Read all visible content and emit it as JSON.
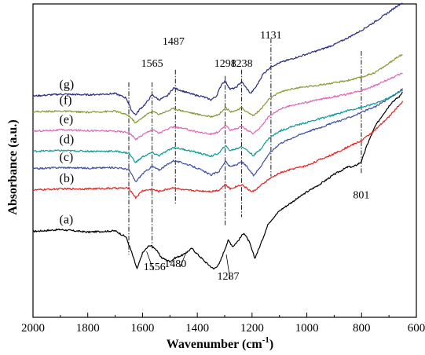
{
  "chart_data": {
    "type": "line",
    "xlabel": "Wavenumber (cm",
    "xlabel_sup": "-1",
    "xlabel_close": ")",
    "ylabel": "Absorbance (a.u.)",
    "xlim": [
      2000,
      600
    ],
    "x_reversed": true,
    "x_ticks": [
      2000,
      1800,
      1600,
      1400,
      1200,
      1000,
      800,
      600
    ],
    "y_ticks_shown": false,
    "y_units": "relative absorbance (0 = bottom of plot, 100 = top)",
    "ylim": [
      0,
      100
    ],
    "grid": false,
    "legend": "none",
    "series": [
      {
        "label": "(a)",
        "color": "#000000",
        "points": [
          [
            2000,
            27.4
          ],
          [
            1900,
            28
          ],
          [
            1800,
            27.2
          ],
          [
            1700,
            27.6
          ],
          [
            1660,
            25.6
          ],
          [
            1640,
            20.8
          ],
          [
            1620,
            15.4
          ],
          [
            1600,
            20.5
          ],
          [
            1575,
            23
          ],
          [
            1556,
            22.2
          ],
          [
            1530,
            19
          ],
          [
            1500,
            17.8
          ],
          [
            1480,
            19
          ],
          [
            1450,
            20
          ],
          [
            1420,
            22
          ],
          [
            1400,
            20.2
          ],
          [
            1370,
            17.6
          ],
          [
            1340,
            15.4
          ],
          [
            1320,
            17
          ],
          [
            1300,
            21.6
          ],
          [
            1287,
            24.6
          ],
          [
            1270,
            22.6
          ],
          [
            1250,
            24.5
          ],
          [
            1230,
            27
          ],
          [
            1210,
            24
          ],
          [
            1190,
            18.8
          ],
          [
            1170,
            23
          ],
          [
            1140,
            30
          ],
          [
            1100,
            34
          ],
          [
            1050,
            37
          ],
          [
            1000,
            40
          ],
          [
            950,
            42.6
          ],
          [
            900,
            45.6
          ],
          [
            850,
            48
          ],
          [
            830,
            48
          ],
          [
            801,
            49.6
          ],
          [
            780,
            55
          ],
          [
            750,
            61
          ],
          [
            720,
            65
          ],
          [
            690,
            68.6
          ],
          [
            660,
            70.6
          ],
          [
            648,
            72.4
          ]
        ]
      },
      {
        "label": "(b)",
        "color": "#e8211f",
        "points": [
          [
            2000,
            40.6
          ],
          [
            1900,
            41
          ],
          [
            1800,
            41
          ],
          [
            1700,
            41.2
          ],
          [
            1650,
            41.2
          ],
          [
            1625,
            38.2
          ],
          [
            1600,
            40.4
          ],
          [
            1565,
            40.8
          ],
          [
            1540,
            40.2
          ],
          [
            1487,
            41.4
          ],
          [
            1450,
            40.6
          ],
          [
            1400,
            40.4
          ],
          [
            1350,
            40.2
          ],
          [
            1320,
            40.6
          ],
          [
            1298,
            42.4
          ],
          [
            1280,
            41
          ],
          [
            1250,
            42
          ],
          [
            1238,
            42.4
          ],
          [
            1220,
            41.2
          ],
          [
            1200,
            40
          ],
          [
            1180,
            41.2
          ],
          [
            1140,
            44
          ],
          [
            1100,
            46
          ],
          [
            1050,
            47.4
          ],
          [
            1000,
            48.4
          ],
          [
            950,
            50.4
          ],
          [
            900,
            52.2
          ],
          [
            850,
            54.4
          ],
          [
            800,
            56.4
          ],
          [
            750,
            59.8
          ],
          [
            700,
            64
          ],
          [
            670,
            67
          ],
          [
            648,
            69
          ]
        ]
      },
      {
        "label": "(c)",
        "color": "#3d50a8",
        "points": [
          [
            2000,
            47.4
          ],
          [
            1900,
            47.8
          ],
          [
            1800,
            47.6
          ],
          [
            1700,
            47.8
          ],
          [
            1650,
            47.2
          ],
          [
            1625,
            43.2
          ],
          [
            1600,
            45.8
          ],
          [
            1565,
            48.2
          ],
          [
            1540,
            47
          ],
          [
            1487,
            50
          ],
          [
            1450,
            49.2
          ],
          [
            1400,
            47.6
          ],
          [
            1350,
            45.4
          ],
          [
            1320,
            46.6
          ],
          [
            1298,
            49.8
          ],
          [
            1280,
            48
          ],
          [
            1250,
            49
          ],
          [
            1238,
            49.6
          ],
          [
            1220,
            48.2
          ],
          [
            1195,
            45.2
          ],
          [
            1170,
            48
          ],
          [
            1140,
            52
          ],
          [
            1100,
            55.4
          ],
          [
            1050,
            57.4
          ],
          [
            1000,
            59.2
          ],
          [
            950,
            60.6
          ],
          [
            900,
            62.2
          ],
          [
            850,
            63.6
          ],
          [
            800,
            65.4
          ],
          [
            750,
            67.2
          ],
          [
            700,
            69.8
          ],
          [
            670,
            71.6
          ],
          [
            648,
            73
          ]
        ]
      },
      {
        "label": "(d)",
        "color": "#119999",
        "points": [
          [
            2000,
            53
          ],
          [
            1900,
            53.2
          ],
          [
            1800,
            53
          ],
          [
            1700,
            53
          ],
          [
            1650,
            52.4
          ],
          [
            1625,
            49.4
          ],
          [
            1600,
            51.2
          ],
          [
            1565,
            52.6
          ],
          [
            1540,
            51.6
          ],
          [
            1487,
            54.2
          ],
          [
            1450,
            53.6
          ],
          [
            1400,
            52.6
          ],
          [
            1350,
            51.4
          ],
          [
            1320,
            52.4
          ],
          [
            1298,
            54.8
          ],
          [
            1280,
            53.2
          ],
          [
            1250,
            54
          ],
          [
            1238,
            54.6
          ],
          [
            1220,
            53.4
          ],
          [
            1195,
            51.6
          ],
          [
            1170,
            53.6
          ],
          [
            1140,
            57
          ],
          [
            1100,
            59.4
          ],
          [
            1050,
            61
          ],
          [
            1000,
            62.2
          ],
          [
            950,
            63.4
          ],
          [
            900,
            64.6
          ],
          [
            850,
            66
          ],
          [
            800,
            67
          ],
          [
            750,
            68.2
          ],
          [
            700,
            70
          ],
          [
            670,
            71.6
          ],
          [
            648,
            72.4
          ]
        ]
      },
      {
        "label": "(e)",
        "color": "#dd66bb",
        "points": [
          [
            2000,
            59.4
          ],
          [
            1900,
            59.8
          ],
          [
            1800,
            59.6
          ],
          [
            1700,
            59.4
          ],
          [
            1650,
            59
          ],
          [
            1625,
            56.8
          ],
          [
            1600,
            58.2
          ],
          [
            1565,
            60
          ],
          [
            1540,
            58.8
          ],
          [
            1487,
            60.8
          ],
          [
            1450,
            60.2
          ],
          [
            1400,
            59.2
          ],
          [
            1350,
            58.4
          ],
          [
            1320,
            59.2
          ],
          [
            1298,
            61.2
          ],
          [
            1280,
            59.8
          ],
          [
            1250,
            60.4
          ],
          [
            1238,
            61
          ],
          [
            1220,
            59.8
          ],
          [
            1195,
            58.6
          ],
          [
            1170,
            60.6
          ],
          [
            1140,
            64
          ],
          [
            1100,
            66.4
          ],
          [
            1050,
            67.8
          ],
          [
            1000,
            68.6
          ],
          [
            950,
            69.6
          ],
          [
            900,
            70.4
          ],
          [
            850,
            71.2
          ],
          [
            800,
            72.4
          ],
          [
            750,
            74
          ],
          [
            700,
            76
          ],
          [
            670,
            77.2
          ],
          [
            648,
            78
          ]
        ]
      },
      {
        "label": "(f)",
        "color": "#889933",
        "points": [
          [
            2000,
            65.6
          ],
          [
            1900,
            65.8
          ],
          [
            1800,
            65.4
          ],
          [
            1700,
            65.8
          ],
          [
            1650,
            64.4
          ],
          [
            1625,
            62
          ],
          [
            1600,
            63.8
          ],
          [
            1565,
            65.8
          ],
          [
            1540,
            64.8
          ],
          [
            1487,
            66.6
          ],
          [
            1450,
            65.8
          ],
          [
            1400,
            64.8
          ],
          [
            1350,
            64
          ],
          [
            1320,
            64.8
          ],
          [
            1298,
            67
          ],
          [
            1280,
            65.6
          ],
          [
            1250,
            66.2
          ],
          [
            1238,
            67
          ],
          [
            1220,
            65.6
          ],
          [
            1195,
            64.4
          ],
          [
            1170,
            66.2
          ],
          [
            1140,
            69.4
          ],
          [
            1100,
            71.8
          ],
          [
            1050,
            73
          ],
          [
            1000,
            73.6
          ],
          [
            950,
            74.2
          ],
          [
            900,
            74.8
          ],
          [
            850,
            75.6
          ],
          [
            800,
            76.6
          ],
          [
            750,
            78.2
          ],
          [
            700,
            81
          ],
          [
            670,
            83
          ],
          [
            648,
            84
          ]
        ]
      },
      {
        "label": "(g)",
        "color": "#2a2e80",
        "points": [
          [
            2000,
            70.6
          ],
          [
            1900,
            71.2
          ],
          [
            1800,
            71
          ],
          [
            1700,
            71.4
          ],
          [
            1660,
            70
          ],
          [
            1640,
            66
          ],
          [
            1625,
            64.6
          ],
          [
            1610,
            66.4
          ],
          [
            1590,
            68
          ],
          [
            1565,
            71
          ],
          [
            1540,
            69.4
          ],
          [
            1510,
            70.6
          ],
          [
            1487,
            73.2
          ],
          [
            1460,
            72.4
          ],
          [
            1420,
            71.2
          ],
          [
            1380,
            70.4
          ],
          [
            1350,
            69.4
          ],
          [
            1330,
            70.6
          ],
          [
            1310,
            74.6
          ],
          [
            1298,
            75.4
          ],
          [
            1280,
            72.8
          ],
          [
            1260,
            73.2
          ],
          [
            1238,
            75.2
          ],
          [
            1225,
            73.6
          ],
          [
            1205,
            71.4
          ],
          [
            1185,
            73.6
          ],
          [
            1160,
            77.6
          ],
          [
            1131,
            80
          ],
          [
            1100,
            81.2
          ],
          [
            1050,
            82.6
          ],
          [
            1000,
            84
          ],
          [
            950,
            85.4
          ],
          [
            900,
            87
          ],
          [
            850,
            89.2
          ],
          [
            800,
            91.6
          ],
          [
            750,
            94.4
          ],
          [
            700,
            97.4
          ],
          [
            670,
            99.4
          ],
          [
            650,
            100.4
          ]
        ]
      }
    ],
    "annotations": [
      {
        "text": "1565",
        "x": 1565,
        "y": 80
      },
      {
        "text": "1487",
        "x": 1487,
        "y": 87
      },
      {
        "text": "1298",
        "x": 1298,
        "y": 80
      },
      {
        "text": "1238",
        "x": 1238,
        "y": 80
      },
      {
        "text": "1131",
        "x": 1131,
        "y": 89
      },
      {
        "text": "801",
        "x": 801,
        "y": 38
      },
      {
        "text": "1556",
        "x": 1556,
        "y": 15
      },
      {
        "text": "1480",
        "x": 1480,
        "y": 16
      },
      {
        "text": "1287",
        "x": 1287,
        "y": 12
      }
    ],
    "reference_lines": [
      {
        "x": 1650,
        "y_top": 75,
        "y_bottom": 20
      },
      {
        "x": 1565,
        "y_top": 75,
        "y_bottom": 22
      },
      {
        "x": 1480,
        "y_top": 79,
        "y_bottom": 36
      },
      {
        "x": 1298,
        "y_top": 77,
        "y_bottom": 29
      },
      {
        "x": 1238,
        "y_top": 79,
        "y_bottom": 32
      },
      {
        "x": 1131,
        "y_top": 89,
        "y_bottom": 45
      },
      {
        "x": 801,
        "y_top": 85,
        "y_bottom": 46
      }
    ],
    "pointer_lines": [
      {
        "x1": 1560,
        "y1": 15,
        "x2": 1585,
        "y2": 21
      },
      {
        "x1": 1462,
        "y1": 16,
        "x2": 1440,
        "y2": 21
      },
      {
        "x1": 1280,
        "y1": 12,
        "x2": 1294,
        "y2": 20
      }
    ]
  }
}
